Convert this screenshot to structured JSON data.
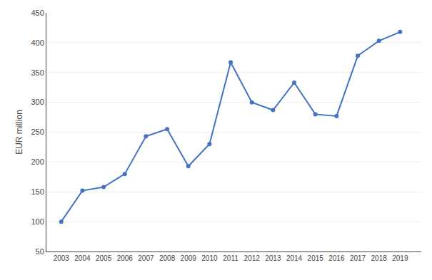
{
  "chart_data": {
    "type": "line",
    "x": [
      2003,
      2004,
      2005,
      2006,
      2007,
      2008,
      2009,
      2010,
      2011,
      2012,
      2013,
      2014,
      2015,
      2016,
      2017,
      2018,
      2019
    ],
    "values": [
      100,
      152,
      158,
      180,
      243,
      255,
      193,
      230,
      367,
      300,
      287,
      333,
      280,
      277,
      378,
      403,
      418
    ],
    "color": "#4472C4",
    "marker": "circle",
    "ylabel": "EUR million",
    "xlim": [
      2002.3,
      2020.0
    ],
    "xticks": [
      2003,
      2004,
      2005,
      2006,
      2007,
      2008,
      2009,
      2010,
      2011,
      2012,
      2013,
      2014,
      2015,
      2016,
      2017,
      2018,
      2019
    ],
    "ylim": [
      50,
      450
    ],
    "yticks": [
      50,
      100,
      150,
      200,
      250,
      300,
      350,
      400,
      450
    ],
    "grid": true
  }
}
